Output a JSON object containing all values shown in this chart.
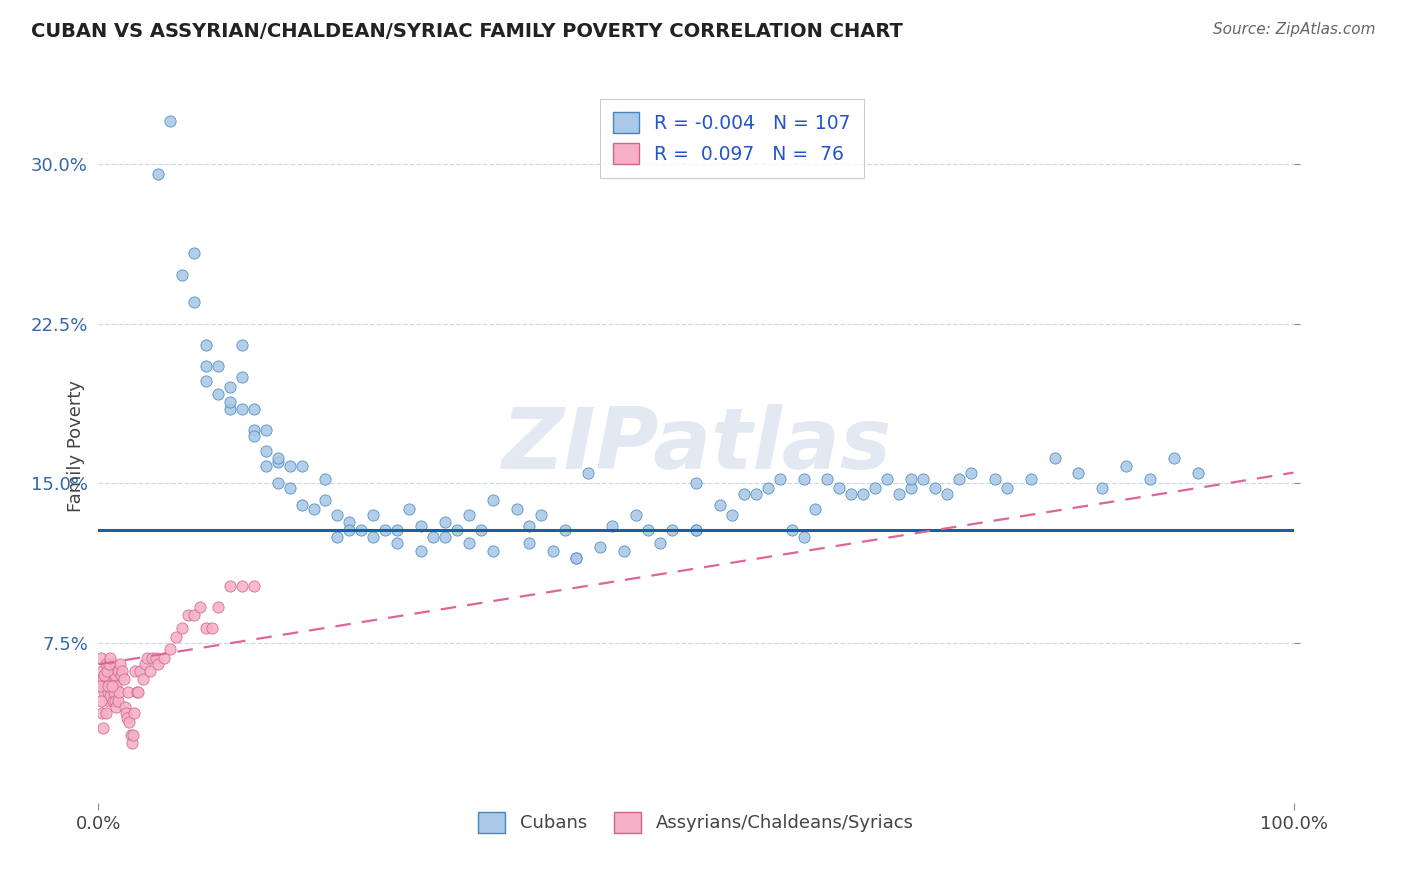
{
  "title": "CUBAN VS ASSYRIAN/CHALDEAN/SYRIAC FAMILY POVERTY CORRELATION CHART",
  "source": "Source: ZipAtlas.com",
  "ylabel": "Family Poverty",
  "yticks_labels": [
    "7.5%",
    "15.0%",
    "22.5%",
    "30.0%"
  ],
  "ytick_vals": [
    0.075,
    0.15,
    0.225,
    0.3
  ],
  "xticks_labels": [
    "0.0%",
    "100.0%"
  ],
  "xtick_vals": [
    0.0,
    1.0
  ],
  "xlim": [
    0.0,
    1.0
  ],
  "ylim": [
    0.0,
    0.335
  ],
  "blue_label": "Cubans",
  "pink_label": "Assyrians/Chaldeans/Syriacs",
  "blue_R": -0.004,
  "blue_N": 107,
  "pink_R": 0.097,
  "pink_N": 76,
  "blue_face_color": "#aac8e8",
  "blue_edge_color": "#4488bb",
  "pink_face_color": "#f5b0c8",
  "pink_edge_color": "#cc6688",
  "blue_line_color": "#1a5fa0",
  "pink_line_color": "#dd6699",
  "blue_hline_y": 0.128,
  "pink_line_x0": 0.0,
  "pink_line_x1": 1.0,
  "pink_line_y0": 0.065,
  "pink_line_y1": 0.155,
  "watermark_text": "ZIPatlas",
  "watermark_color": "#ccd8ea",
  "grid_color": "#c8d4e4",
  "bg_color": "#ffffff",
  "title_color": "#222222",
  "source_color": "#666666",
  "legend_text_color": "#2255cc",
  "axis_tick_color": "#3366aa",
  "blue_scatter_x": [
    0.05,
    0.08,
    0.08,
    0.09,
    0.09,
    0.1,
    0.1,
    0.11,
    0.11,
    0.12,
    0.12,
    0.12,
    0.13,
    0.13,
    0.14,
    0.14,
    0.14,
    0.15,
    0.15,
    0.16,
    0.16,
    0.17,
    0.18,
    0.19,
    0.2,
    0.2,
    0.21,
    0.22,
    0.23,
    0.24,
    0.25,
    0.26,
    0.27,
    0.28,
    0.29,
    0.3,
    0.31,
    0.32,
    0.33,
    0.35,
    0.36,
    0.37,
    0.39,
    0.4,
    0.41,
    0.43,
    0.45,
    0.46,
    0.48,
    0.5,
    0.5,
    0.52,
    0.54,
    0.55,
    0.57,
    0.58,
    0.59,
    0.6,
    0.61,
    0.63,
    0.64,
    0.65,
    0.66,
    0.67,
    0.68,
    0.69,
    0.7,
    0.71,
    0.72,
    0.73,
    0.75,
    0.76,
    0.78,
    0.8,
    0.82,
    0.84,
    0.86,
    0.88,
    0.9,
    0.92,
    0.06,
    0.07,
    0.09,
    0.11,
    0.13,
    0.15,
    0.17,
    0.19,
    0.21,
    0.23,
    0.25,
    0.27,
    0.29,
    0.31,
    0.33,
    0.36,
    0.38,
    0.4,
    0.42,
    0.44,
    0.47,
    0.5,
    0.53,
    0.56,
    0.59,
    0.62,
    0.68
  ],
  "blue_scatter_y": [
    0.295,
    0.258,
    0.235,
    0.215,
    0.198,
    0.205,
    0.192,
    0.195,
    0.185,
    0.215,
    0.2,
    0.185,
    0.185,
    0.175,
    0.175,
    0.165,
    0.158,
    0.16,
    0.15,
    0.158,
    0.148,
    0.14,
    0.138,
    0.142,
    0.135,
    0.125,
    0.132,
    0.128,
    0.135,
    0.128,
    0.128,
    0.138,
    0.13,
    0.125,
    0.132,
    0.128,
    0.135,
    0.128,
    0.142,
    0.138,
    0.13,
    0.135,
    0.128,
    0.115,
    0.155,
    0.13,
    0.135,
    0.128,
    0.128,
    0.15,
    0.128,
    0.14,
    0.145,
    0.145,
    0.152,
    0.128,
    0.125,
    0.138,
    0.152,
    0.145,
    0.145,
    0.148,
    0.152,
    0.145,
    0.148,
    0.152,
    0.148,
    0.145,
    0.152,
    0.155,
    0.152,
    0.148,
    0.152,
    0.162,
    0.155,
    0.148,
    0.158,
    0.152,
    0.162,
    0.155,
    0.32,
    0.248,
    0.205,
    0.188,
    0.172,
    0.162,
    0.158,
    0.152,
    0.128,
    0.125,
    0.122,
    0.118,
    0.125,
    0.122,
    0.118,
    0.122,
    0.118,
    0.115,
    0.12,
    0.118,
    0.122,
    0.128,
    0.135,
    0.148,
    0.152,
    0.148,
    0.152
  ],
  "pink_scatter_x": [
    0.002,
    0.003,
    0.004,
    0.005,
    0.005,
    0.006,
    0.006,
    0.007,
    0.007,
    0.008,
    0.008,
    0.009,
    0.009,
    0.01,
    0.01,
    0.011,
    0.011,
    0.012,
    0.012,
    0.013,
    0.013,
    0.014,
    0.014,
    0.015,
    0.015,
    0.016,
    0.016,
    0.017,
    0.018,
    0.019,
    0.02,
    0.021,
    0.022,
    0.023,
    0.024,
    0.025,
    0.026,
    0.027,
    0.028,
    0.029,
    0.03,
    0.031,
    0.032,
    0.033,
    0.035,
    0.037,
    0.039,
    0.041,
    0.043,
    0.045,
    0.048,
    0.05,
    0.055,
    0.06,
    0.065,
    0.07,
    0.075,
    0.08,
    0.085,
    0.09,
    0.095,
    0.1,
    0.11,
    0.12,
    0.13,
    0.001,
    0.002,
    0.003,
    0.004,
    0.005,
    0.006,
    0.007,
    0.008,
    0.009,
    0.01,
    0.011
  ],
  "pink_scatter_y": [
    0.068,
    0.062,
    0.058,
    0.055,
    0.052,
    0.065,
    0.06,
    0.058,
    0.055,
    0.052,
    0.06,
    0.048,
    0.058,
    0.062,
    0.05,
    0.065,
    0.055,
    0.06,
    0.048,
    0.055,
    0.052,
    0.06,
    0.048,
    0.055,
    0.045,
    0.062,
    0.048,
    0.052,
    0.065,
    0.06,
    0.062,
    0.058,
    0.045,
    0.042,
    0.04,
    0.052,
    0.038,
    0.032,
    0.028,
    0.032,
    0.042,
    0.062,
    0.052,
    0.052,
    0.062,
    0.058,
    0.065,
    0.068,
    0.062,
    0.068,
    0.068,
    0.065,
    0.068,
    0.072,
    0.078,
    0.082,
    0.088,
    0.088,
    0.092,
    0.082,
    0.082,
    0.092,
    0.102,
    0.102,
    0.102,
    0.055,
    0.048,
    0.042,
    0.035,
    0.06,
    0.042,
    0.062,
    0.055,
    0.065,
    0.068,
    0.055
  ]
}
